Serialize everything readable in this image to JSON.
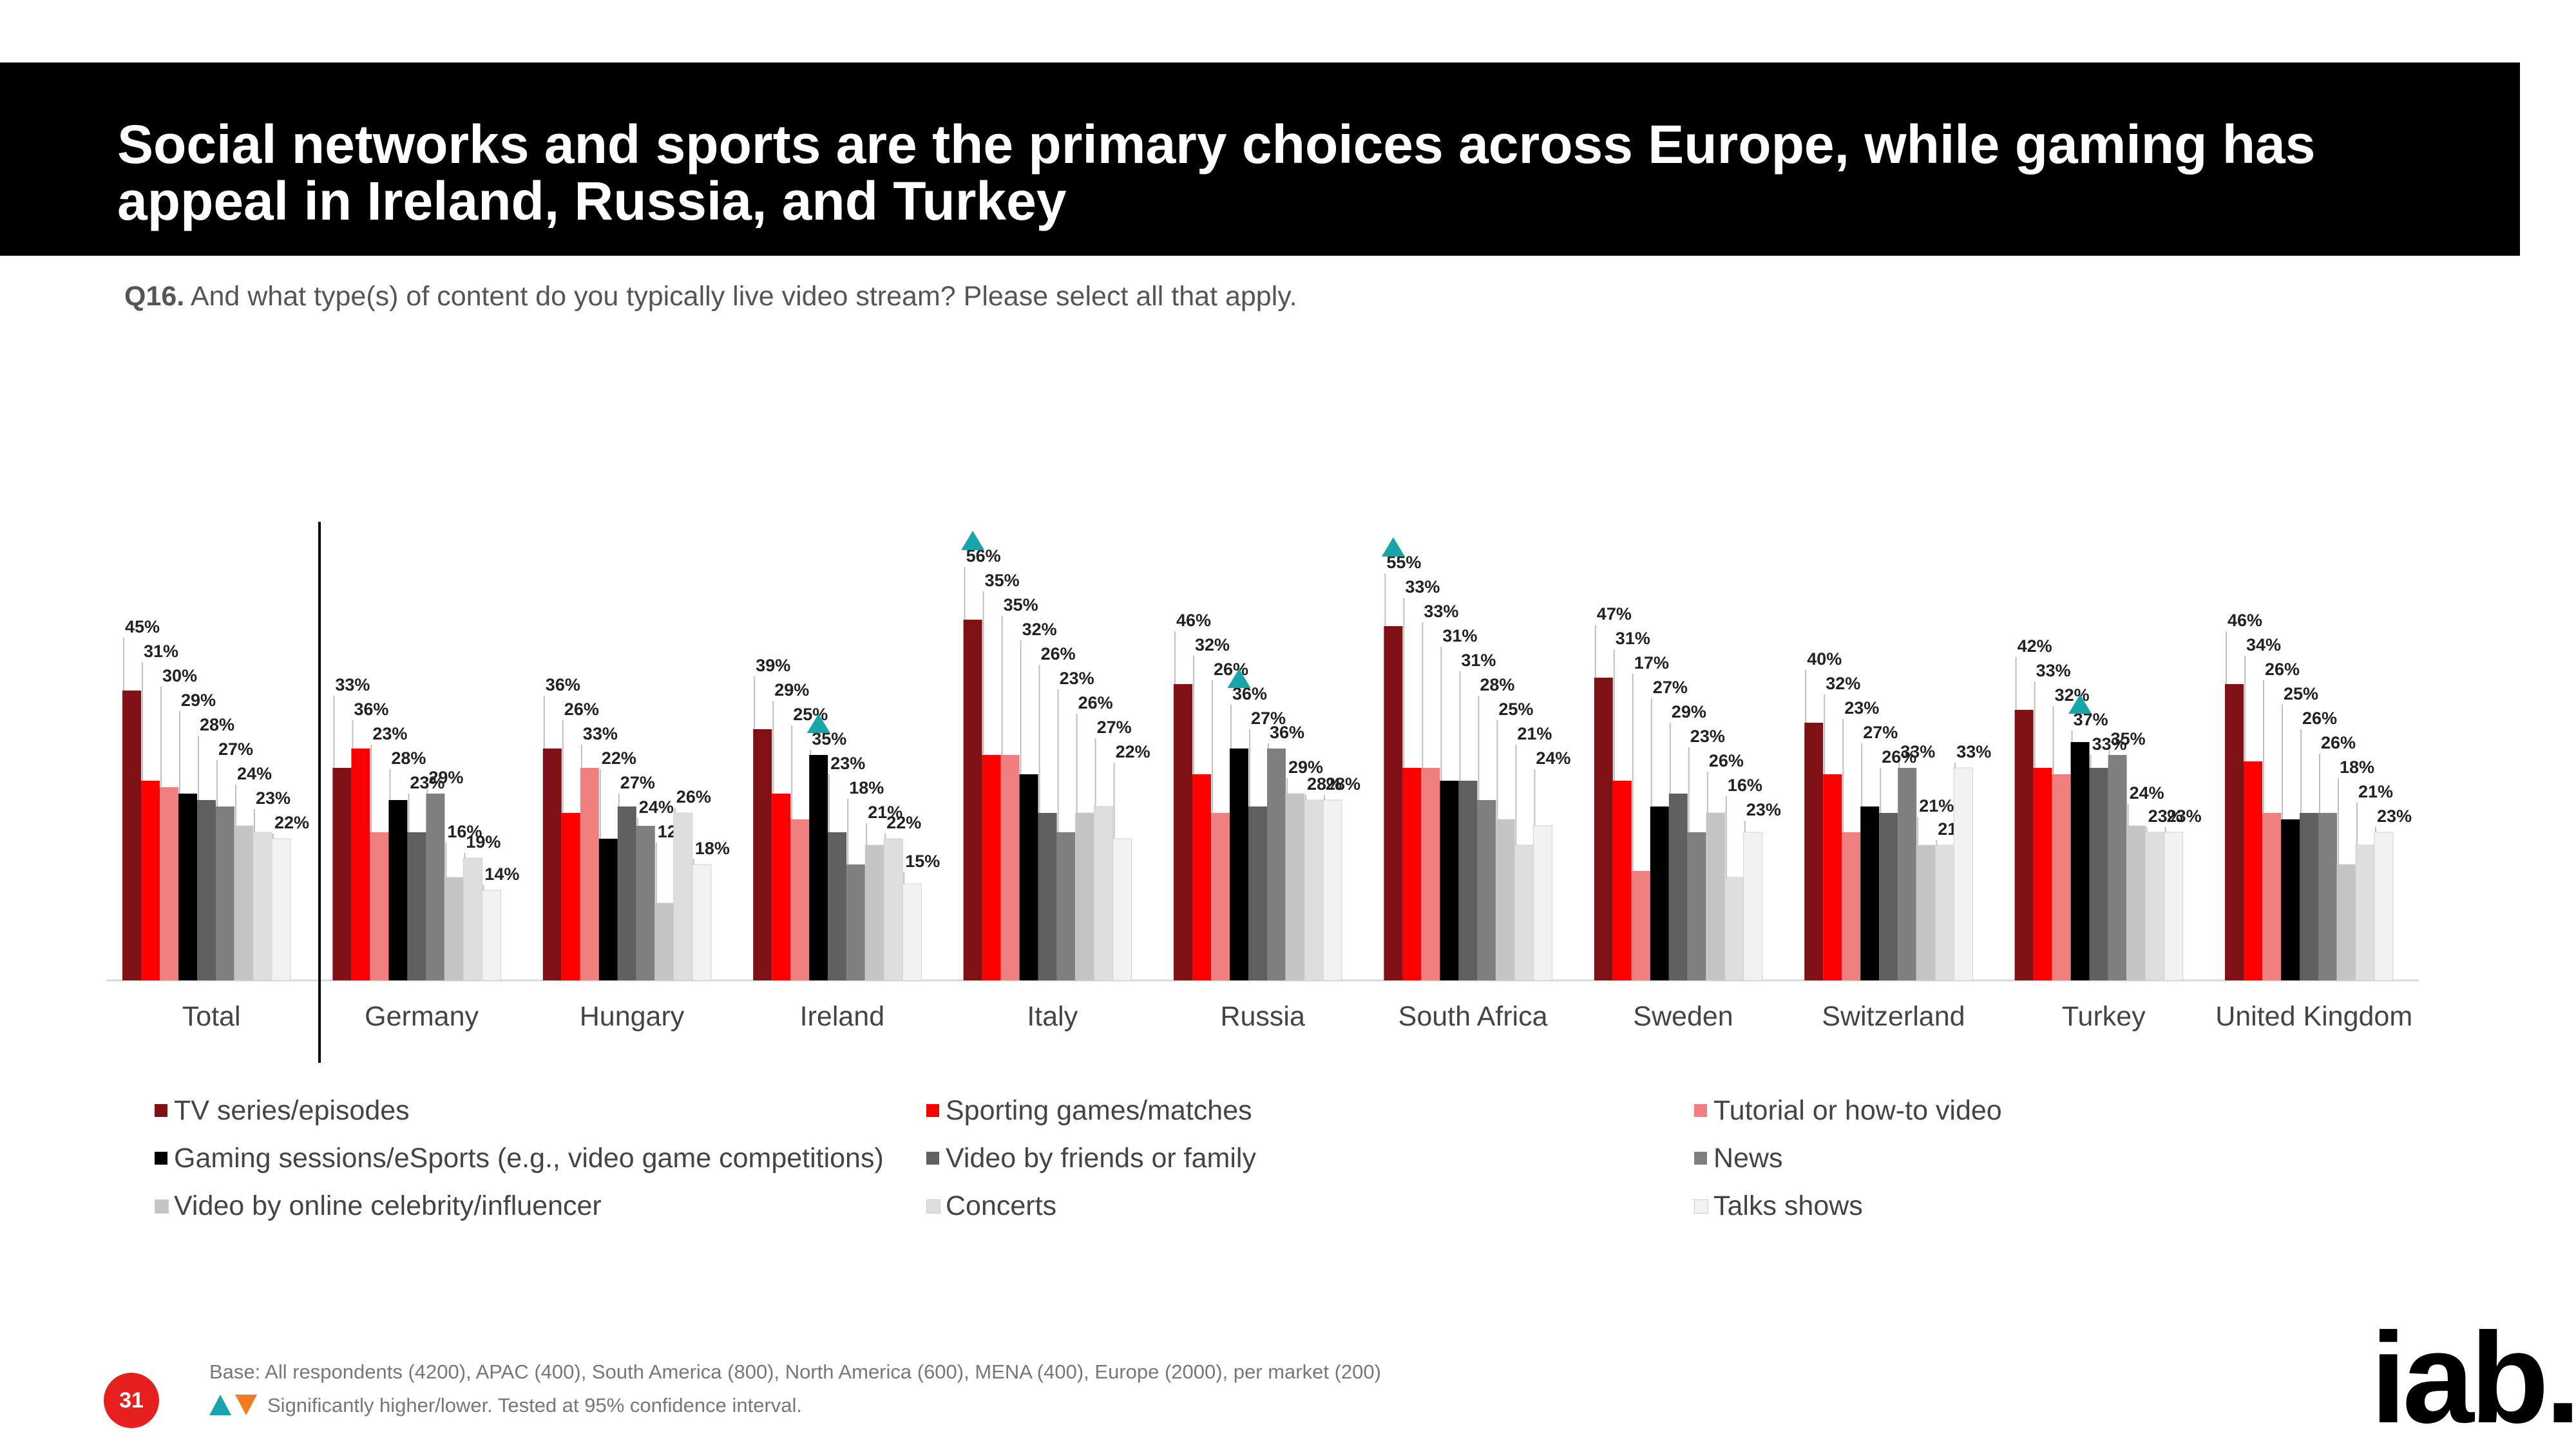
{
  "header": {
    "title": "Social networks and sports are the primary choices across Europe, while gaming has appeal in Ireland, Russia, and Turkey"
  },
  "question": {
    "code": "Q16.",
    "text": "And what type(s) of content do you typically live video stream? Please select all that apply."
  },
  "colors": {
    "series": [
      "#7f1014",
      "#fe0000",
      "#f08080",
      "#000000",
      "#5f5f5f",
      "#7f7f7f",
      "#c4c4c4",
      "#dedede",
      "#f2f2f2"
    ],
    "significance_marker": "#18a5a9",
    "accent": "#e5201f"
  },
  "chart_data": {
    "type": "bar",
    "categories": [
      "Total",
      "Germany",
      "Hungary",
      "Ireland",
      "Italy",
      "Russia",
      "South Africa",
      "Sweden",
      "Switzerland",
      "Turkey",
      "United Kingdom"
    ],
    "series": [
      {
        "name": "TV series/episodes",
        "values": [
          45,
          33,
          36,
          39,
          56,
          46,
          55,
          47,
          40,
          42,
          46
        ]
      },
      {
        "name": "Sporting games/matches",
        "values": [
          31,
          36,
          26,
          29,
          35,
          32,
          33,
          31,
          32,
          33,
          34
        ]
      },
      {
        "name": "Tutorial or how-to video",
        "values": [
          30,
          23,
          33,
          25,
          35,
          26,
          33,
          17,
          23,
          32,
          26
        ]
      },
      {
        "name": "Gaming sessions/eSports (e.g., video game competitions)",
        "values": [
          29,
          28,
          22,
          35,
          32,
          36,
          31,
          27,
          27,
          37,
          25
        ]
      },
      {
        "name": "Video by friends or family",
        "values": [
          28,
          23,
          27,
          23,
          26,
          27,
          31,
          29,
          26,
          33,
          26
        ]
      },
      {
        "name": "News",
        "values": [
          27,
          29,
          24,
          18,
          23,
          36,
          28,
          23,
          33,
          35,
          26
        ]
      },
      {
        "name": "Video by online celebrity/influencer",
        "values": [
          24,
          16,
          12,
          21,
          26,
          29,
          25,
          26,
          21,
          24,
          18
        ]
      },
      {
        "name": "Concerts",
        "values": [
          23,
          19,
          26,
          22,
          27,
          28,
          21,
          16,
          21,
          23,
          21
        ]
      },
      {
        "name": "Talks shows",
        "values": [
          22,
          14,
          18,
          15,
          22,
          28,
          24,
          23,
          33,
          23,
          23
        ]
      }
    ],
    "significant_higher": [
      {
        "category": "Ireland",
        "series": "Gaming sessions/eSports (e.g., video game competitions)"
      },
      {
        "category": "Italy",
        "series": "TV series/episodes"
      },
      {
        "category": "Russia",
        "series": "Gaming sessions/eSports (e.g., video game competitions)"
      },
      {
        "category": "South Africa",
        "series": "TV series/episodes"
      },
      {
        "category": "Turkey",
        "series": "Gaming sessions/eSports (e.g., video game competitions)"
      }
    ],
    "value_suffix": "%",
    "ylim": [
      0,
      70
    ],
    "grid": false,
    "legend_position": "bottom"
  },
  "footer": {
    "base": "Base: All respondents (4200), APAC (400), South America (800), North America (600), MENA (400), Europe (2000), per market (200)",
    "significance": "Significantly higher/lower. Tested at 95% confidence interval.",
    "page_number": "31",
    "logo_text": "iab."
  }
}
